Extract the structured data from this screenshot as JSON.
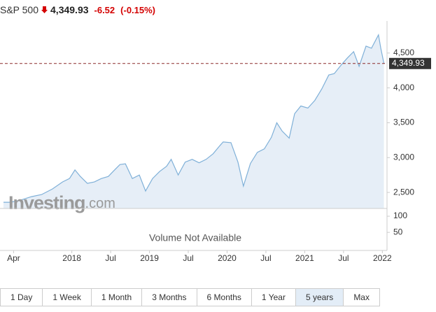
{
  "header": {
    "symbol": "S&P 500",
    "change": "-6.52",
    "change_pct": "(-0.15%)"
  },
  "chart_data": {
    "type": "area",
    "x": [
      2017.12,
      2017.21,
      2017.34,
      2017.48,
      2017.61,
      2017.75,
      2017.88,
      2017.97,
      2018.04,
      2018.11,
      2018.2,
      2018.29,
      2018.38,
      2018.47,
      2018.54,
      2018.62,
      2018.69,
      2018.78,
      2018.87,
      2018.95,
      2019.04,
      2019.13,
      2019.22,
      2019.28,
      2019.37,
      2019.46,
      2019.55,
      2019.64,
      2019.73,
      2019.82,
      2019.91,
      2019.95,
      2020.05,
      2020.14,
      2020.21,
      2020.3,
      2020.39,
      2020.48,
      2020.57,
      2020.64,
      2020.71,
      2020.8,
      2020.87,
      2020.95,
      2021.04,
      2021.13,
      2021.22,
      2021.31,
      2021.38,
      2021.47,
      2021.55,
      2021.63,
      2021.7,
      2021.79,
      2021.86,
      2021.95,
      2021.98,
      2022.02
    ],
    "values": [
      2359,
      2359,
      2389,
      2440,
      2470,
      2550,
      2650,
      2700,
      2823,
      2730,
      2630,
      2650,
      2700,
      2730,
      2810,
      2900,
      2910,
      2700,
      2750,
      2520,
      2700,
      2800,
      2875,
      2975,
      2750,
      2935,
      2975,
      2925,
      2975,
      3055,
      3175,
      3225,
      3215,
      2935,
      2590,
      2915,
      3075,
      3125,
      3290,
      3500,
      3380,
      3280,
      3630,
      3740,
      3710,
      3820,
      3985,
      4185,
      4205,
      4330,
      4430,
      4520,
      4310,
      4600,
      4570,
      4760,
      4570,
      4350
    ],
    "color": "#7fb0d8",
    "fill": "#e6eef7",
    "xlim": [
      2017.12,
      2022.06
    ],
    "xticks": [
      {
        "value": 2017.25,
        "label": "Apr"
      },
      2018,
      {
        "value": 2018.5,
        "label": "Jul"
      },
      2019,
      {
        "value": 2019.5,
        "label": "Jul"
      },
      2020,
      {
        "value": 2020.5,
        "label": "Jul"
      },
      2021,
      {
        "value": 2021.5,
        "label": "Jul"
      },
      2022
    ],
    "ylim": [
      2270,
      4960
    ],
    "yticks": [
      {
        "value": 2500,
        "label": "2,500"
      },
      {
        "value": 3000,
        "label": "3,000"
      },
      {
        "value": 3500,
        "label": "3,500"
      },
      {
        "value": 4000,
        "label": "4,000"
      },
      {
        "value": 4500,
        "label": "4,500"
      }
    ],
    "price_line": {
      "value": 4349.93,
      "label": "4,349.93"
    },
    "price_line_color": "#8b2a2a",
    "volume_ylim": [
      -6,
      124
    ],
    "volume_yticks": [
      50,
      100
    ],
    "volume_note": "Volume Not Available",
    "watermark": "Investing",
    "watermark_suffix": ".com"
  },
  "ranges": [
    "1 Day",
    "1 Week",
    "1 Month",
    "3 Months",
    "6 Months",
    "1 Year",
    "5 years",
    "Max"
  ],
  "active_range": 6
}
